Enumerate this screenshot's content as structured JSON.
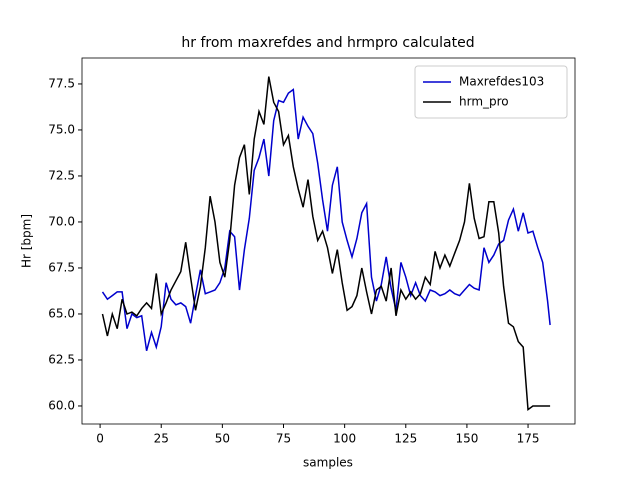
{
  "chart_data": {
    "type": "line",
    "title": "hr from maxrefdes and hrmpro calculated",
    "xlabel": "samples",
    "ylabel": "Hr [bpm]",
    "x": [
      1,
      3,
      5,
      7,
      9,
      11,
      13,
      15,
      17,
      19,
      21,
      23,
      25,
      27,
      29,
      31,
      33,
      35,
      37,
      39,
      41,
      43,
      45,
      47,
      49,
      51,
      53,
      55,
      57,
      59,
      61,
      63,
      65,
      67,
      69,
      71,
      73,
      75,
      77,
      79,
      81,
      83,
      85,
      87,
      89,
      91,
      93,
      95,
      97,
      99,
      101,
      103,
      105,
      107,
      109,
      111,
      113,
      115,
      117,
      119,
      121,
      123,
      125,
      127,
      129,
      131,
      133,
      135,
      137,
      139,
      141,
      143,
      145,
      147,
      149,
      151,
      153,
      155,
      157,
      159,
      161,
      163,
      165,
      167,
      169,
      171,
      173,
      175,
      177,
      179,
      181,
      183,
      184
    ],
    "series": [
      {
        "name": "Maxrefdes103",
        "color": "#0000cd",
        "values": [
          66.2,
          65.8,
          66.0,
          66.2,
          66.2,
          64.2,
          65.0,
          64.8,
          64.9,
          63.0,
          64.0,
          63.2,
          64.3,
          66.7,
          65.8,
          65.5,
          65.6,
          65.4,
          64.5,
          66.0,
          67.4,
          66.1,
          66.2,
          66.3,
          66.7,
          67.5,
          69.5,
          69.2,
          66.3,
          68.5,
          70.2,
          72.8,
          73.5,
          74.5,
          72.5,
          75.5,
          76.6,
          76.5,
          77.0,
          77.2,
          74.5,
          75.7,
          75.2,
          74.8,
          73.2,
          71.2,
          69.5,
          72.0,
          73.0,
          70.0,
          69.0,
          68.1,
          69.1,
          70.5,
          71.0,
          67.0,
          65.7,
          66.6,
          68.1,
          66.4,
          65.2,
          67.8,
          67.0,
          66.0,
          66.7,
          66.0,
          65.7,
          66.3,
          66.2,
          66.0,
          66.1,
          66.3,
          66.1,
          66.0,
          66.3,
          66.6,
          66.4,
          66.3,
          68.6,
          67.8,
          68.2,
          68.8,
          69.0,
          70.1,
          70.7,
          69.5,
          70.5,
          69.4,
          69.5,
          68.6,
          67.8,
          65.7,
          64.4
        ]
      },
      {
        "name": "hrm_pro",
        "color": "#000000",
        "values": [
          65.0,
          63.8,
          65.0,
          64.2,
          65.8,
          65.0,
          65.1,
          64.9,
          65.3,
          65.6,
          65.3,
          67.2,
          65.0,
          65.6,
          66.3,
          66.8,
          67.3,
          68.9,
          67.0,
          65.2,
          66.5,
          68.6,
          71.4,
          70.0,
          67.8,
          67.0,
          69.0,
          72.0,
          73.5,
          74.2,
          71.5,
          74.5,
          76.0,
          75.3,
          77.9,
          76.5,
          76.0,
          74.2,
          74.7,
          73.0,
          71.8,
          70.8,
          72.3,
          70.3,
          69.0,
          69.5,
          68.6,
          67.2,
          68.5,
          66.7,
          65.2,
          65.4,
          66.0,
          67.5,
          66.2,
          65.0,
          66.3,
          66.5,
          65.7,
          67.5,
          64.9,
          66.3,
          65.8,
          66.2,
          65.8,
          66.1,
          67.0,
          66.6,
          68.4,
          67.5,
          68.2,
          67.6,
          68.3,
          69.0,
          70.0,
          72.1,
          70.2,
          69.1,
          69.2,
          71.1,
          71.1,
          69.4,
          66.5,
          64.5,
          64.3,
          63.5,
          63.2,
          59.8,
          60.0,
          60.0,
          60.0,
          60.0,
          60.0
        ]
      }
    ],
    "xlim": [
      -7.4,
      194.2
    ],
    "ylim": [
      59.02,
      78.91
    ],
    "xticks": [
      0,
      25,
      50,
      75,
      100,
      125,
      150,
      175
    ],
    "yticks": [
      {
        "value": 60,
        "label": "60.0"
      },
      62.5,
      {
        "value": 65,
        "label": "65.0"
      },
      67.5,
      {
        "value": 70,
        "label": "70.0"
      },
      72.5,
      {
        "value": 75,
        "label": "75.0"
      },
      77.5
    ],
    "legend": "upper right"
  }
}
